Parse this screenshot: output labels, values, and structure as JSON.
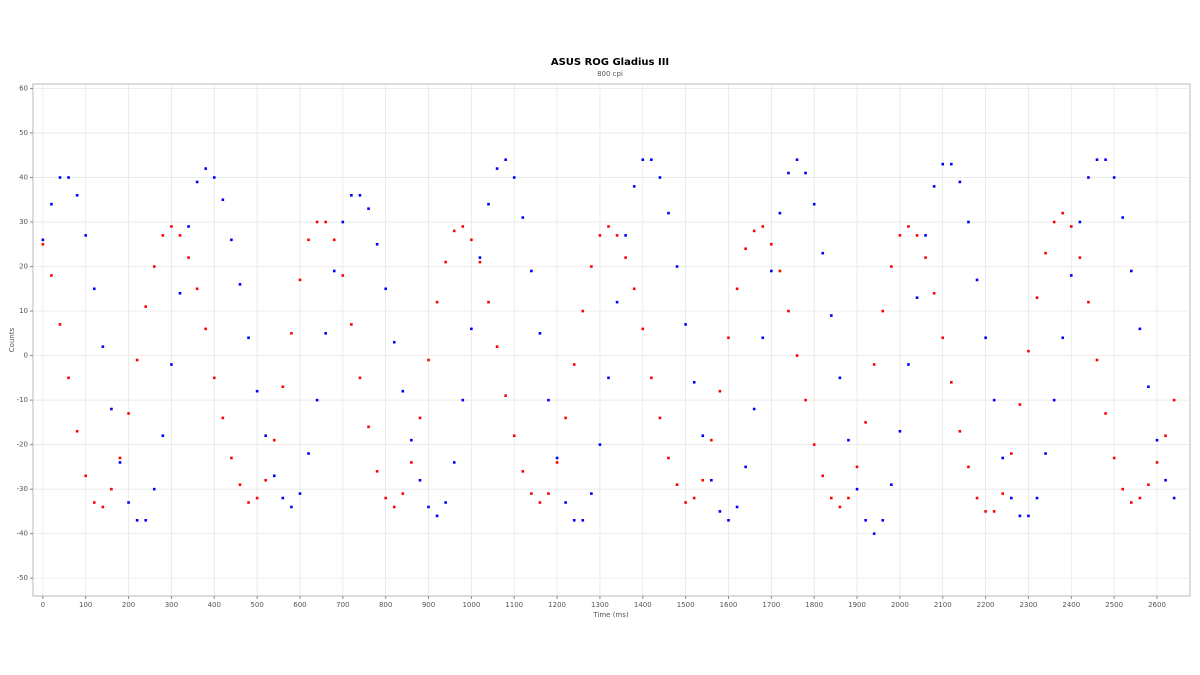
{
  "chart_data": {
    "type": "scatter",
    "title": "ASUS ROG Gladius III",
    "subtitle": "800 cpi",
    "x_label": "Time (ms)",
    "y_label": "Counts",
    "xlim": [
      -23,
      2677
    ],
    "ylim": [
      -54,
      61
    ],
    "xticks": [
      0,
      100,
      200,
      300,
      400,
      500,
      600,
      700,
      800,
      900,
      1000,
      1100,
      1200,
      1300,
      1400,
      1500,
      1600,
      1700,
      1800,
      1900,
      2000,
      2100,
      2200,
      2300,
      2400,
      2500,
      2600
    ],
    "yticks": [
      -50,
      -40,
      -30,
      -20,
      -10,
      0,
      10,
      20,
      30,
      40,
      50,
      60
    ],
    "grid": true,
    "x": [
      0,
      20,
      40,
      60,
      80,
      100,
      120,
      140,
      160,
      180,
      200,
      220,
      240,
      260,
      280,
      300,
      320,
      340,
      360,
      380,
      400,
      420,
      440,
      460,
      480,
      500,
      520,
      540,
      560,
      580,
      600,
      620,
      640,
      660,
      680,
      700,
      720,
      740,
      760,
      780,
      800,
      820,
      840,
      860,
      880,
      900,
      920,
      940,
      960,
      980,
      1000,
      1020,
      1040,
      1060,
      1080,
      1100,
      1120,
      1140,
      1160,
      1180,
      1200,
      1220,
      1240,
      1260,
      1280,
      1300,
      1320,
      1340,
      1360,
      1380,
      1400,
      1420,
      1440,
      1460,
      1480,
      1500,
      1520,
      1540,
      1560,
      1580,
      1600,
      1620,
      1640,
      1660,
      1680,
      1700,
      1720,
      1740,
      1760,
      1780,
      1800,
      1820,
      1840,
      1860,
      1880,
      1900,
      1920,
      1940,
      1960,
      1980,
      2000,
      2020,
      2040,
      2060,
      2080,
      2100,
      2120,
      2140,
      2160,
      2180,
      2200,
      2220,
      2240,
      2260,
      2280,
      2300,
      2320,
      2340,
      2360,
      2380,
      2400,
      2420,
      2440,
      2460,
      2480,
      2500,
      2520,
      2540,
      2560,
      2580,
      2600,
      2620,
      2640
    ],
    "series": [
      {
        "color": "#0000ff",
        "values": [
          26,
          34,
          40,
          40,
          36,
          27,
          15,
          2,
          -12,
          -24,
          -33,
          -37,
          -37,
          -30,
          -18,
          -2,
          14,
          29,
          39,
          42,
          40,
          35,
          26,
          16,
          4,
          -8,
          -18,
          -27,
          -32,
          -34,
          -31,
          -22,
          -10,
          5,
          19,
          30,
          36,
          36,
          33,
          25,
          15,
          3,
          -8,
          -19,
          -28,
          -34,
          -36,
          -33,
          -24,
          -10,
          6,
          22,
          34,
          42,
          44,
          40,
          31,
          19,
          5,
          -10,
          -23,
          -33,
          -37,
          -37,
          -31,
          -20,
          -5,
          12,
          27,
          38,
          44,
          44,
          40,
          32,
          20,
          7,
          -6,
          -18,
          -28,
          -35,
          -37,
          -34,
          -25,
          -12,
          4,
          19,
          32,
          41,
          44,
          41,
          34,
          23,
          9,
          -5,
          -19,
          -30,
          -37,
          -40,
          -37,
          -29,
          -17,
          -2,
          13,
          27,
          38,
          43,
          43,
          39,
          30,
          17,
          4,
          -10,
          -23,
          -32,
          -36,
          -36,
          -32,
          -22,
          -10,
          4,
          18,
          30,
          40,
          44,
          44,
          40,
          31,
          19,
          6,
          -7,
          -19,
          -28,
          -32
        ]
      },
      {
        "color": "#ff0000",
        "values": [
          25,
          18,
          7,
          -5,
          -17,
          -27,
          -33,
          -34,
          -30,
          -23,
          -13,
          -1,
          11,
          20,
          27,
          29,
          27,
          22,
          15,
          6,
          -5,
          -14,
          -23,
          -29,
          -33,
          -32,
          -28,
          -19,
          -7,
          5,
          17,
          26,
          30,
          30,
          26,
          18,
          7,
          -5,
          -16,
          -26,
          -32,
          -34,
          -31,
          -24,
          -14,
          -1,
          12,
          21,
          28,
          29,
          26,
          21,
          12,
          2,
          -9,
          -18,
          -26,
          -31,
          -33,
          -31,
          -24,
          -14,
          -2,
          10,
          20,
          27,
          29,
          27,
          22,
          15,
          6,
          -5,
          -14,
          -23,
          -29,
          -33,
          -32,
          -28,
          -19,
          -8,
          4,
          15,
          24,
          28,
          29,
          25,
          19,
          10,
          0,
          -10,
          -20,
          -27,
          -32,
          -34,
          -32,
          -25,
          -15,
          -2,
          10,
          20,
          27,
          29,
          27,
          22,
          14,
          4,
          -6,
          -17,
          -25,
          -32,
          -35,
          -35,
          -31,
          -22,
          -11,
          1,
          13,
          23,
          30,
          32,
          29,
          22,
          12,
          -1,
          -13,
          -23,
          -30,
          -33,
          -32,
          -29,
          -24,
          -18,
          -10
        ]
      }
    ]
  }
}
